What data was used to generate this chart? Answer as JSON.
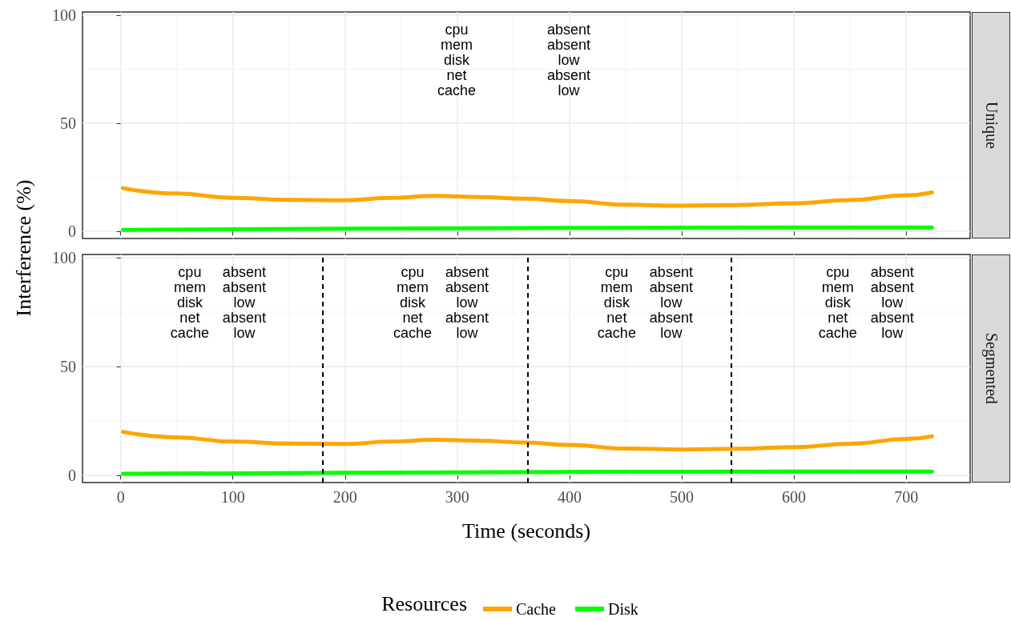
{
  "chart_data": [
    {
      "type": "line",
      "ylabel": "Interference (%)",
      "xlim": [
        -34,
        757
      ],
      "ylim": [
        -3.3,
        101.5
      ],
      "xticks": [
        0,
        100,
        200,
        300,
        400,
        500,
        600,
        700
      ],
      "yticks": [
        0,
        50,
        100
      ],
      "grid": true,
      "tick_labels": "y",
      "legend": false,
      "series": [
        {
          "color": "#ffa500",
          "x": [
            2,
            50,
            100,
            150,
            200,
            240,
            280,
            320,
            360,
            400,
            450,
            500,
            550,
            600,
            650,
            700,
            723
          ],
          "values": [
            20,
            17.5,
            15.5,
            14.6,
            14.4,
            15.5,
            16.4,
            15.9,
            15.1,
            14,
            12.3,
            11.9,
            12.2,
            13,
            14.5,
            16.7,
            18
          ]
        },
        {
          "color": "#00ff00",
          "x": [
            2,
            200,
            400,
            600,
            723
          ],
          "values": [
            0.7,
            1.2,
            1.6,
            1.8,
            1.8
          ]
        }
      ],
      "annotations": [
        "Unique",
        "cpu\nmem\ndisk\nnet\ncache",
        "absent\nabsent\nlow\nabsent\nlow"
      ]
    },
    {
      "type": "line",
      "xlabel": "Time (seconds)",
      "legend_title": "Resources",
      "xlim": [
        -34,
        757
      ],
      "ylim": [
        -3.3,
        101.5
      ],
      "xticks": [
        0,
        100,
        200,
        300,
        400,
        500,
        600,
        700
      ],
      "yticks": [
        0,
        50,
        100
      ],
      "grid": true,
      "legend": "bottom",
      "series": [
        {
          "name": "Cache",
          "color": "#ffa500",
          "x": [
            2,
            50,
            100,
            150,
            200,
            240,
            280,
            320,
            360,
            400,
            450,
            500,
            550,
            600,
            650,
            700,
            723
          ],
          "values": [
            20,
            17.5,
            15.5,
            14.6,
            14.4,
            15.5,
            16.4,
            15.9,
            15.1,
            14,
            12.3,
            11.9,
            12.2,
            13,
            14.5,
            16.7,
            18
          ]
        },
        {
          "name": "Disk",
          "color": "#00ff00",
          "x": [
            2,
            200,
            400,
            600,
            723
          ],
          "values": [
            0.7,
            1.2,
            1.6,
            1.8,
            1.8
          ]
        }
      ],
      "ref_lines": [
        {
          "axis": "x",
          "value": 180,
          "color": "#000000",
          "line_style": "dashed"
        },
        {
          "axis": "x",
          "value": 363,
          "color": "#000000",
          "line_style": "dashed"
        },
        {
          "axis": "x",
          "value": 544,
          "color": "#000000",
          "line_style": "dashed"
        }
      ],
      "annotations": [
        "Segmented",
        "cpu\nmem\ndisk\nnet\ncache",
        "absent\nabsent\nlow\nabsent\nlow",
        "cpu\nmem\ndisk\nnet\ncache",
        "absent\nabsent\nlow\nabsent\nlow",
        "cpu\nmem\ndisk\nnet\ncache",
        "absent\nabsent\nlow\nabsent\nlow",
        "cpu\nmem\ndisk\nnet\ncache",
        "absent\nabsent\nlow\nabsent\nlow"
      ]
    }
  ]
}
